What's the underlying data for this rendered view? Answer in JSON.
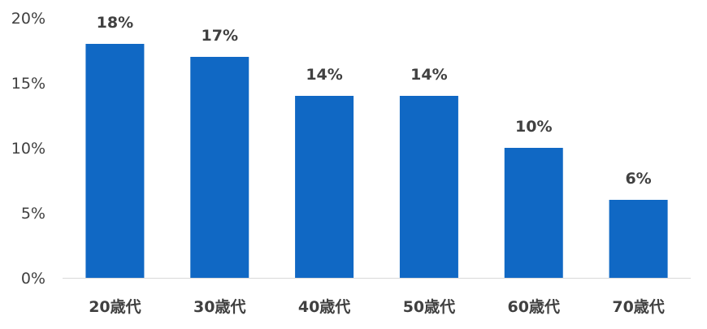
{
  "chart_data": {
    "type": "bar",
    "categories": [
      "20歳代",
      "30歳代",
      "40歳代",
      "50歳代",
      "60歳代",
      "70歳代"
    ],
    "values": [
      18,
      17,
      14,
      14,
      10,
      6
    ],
    "data_labels": [
      "18%",
      "17%",
      "14%",
      "14%",
      "10%",
      "6%"
    ],
    "y_ticks": [
      0,
      5,
      10,
      15,
      20
    ],
    "y_tick_labels": [
      "0%",
      "5%",
      "10%",
      "15%",
      "20%"
    ],
    "ylim": [
      0,
      20
    ],
    "title": "",
    "xlabel": "",
    "ylabel": "",
    "grid": false,
    "legend": "none",
    "bar_color": "#1068C4",
    "axis_color": "#D9D9D9",
    "text_color": "#404040"
  }
}
